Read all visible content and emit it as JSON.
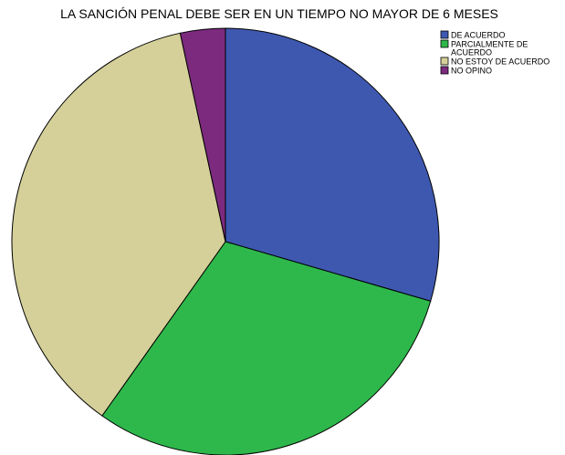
{
  "chart_data": {
    "type": "pie",
    "title": "LA SANCIÓN PENAL DEBE SER EN UN TIEMPO NO MAYOR DE 6 MESES",
    "legend_position": "top-right",
    "start_angle_deg": 0,
    "direction": "clockwise",
    "slices": [
      {
        "label": "DE ACUERDO",
        "legend_lines": [
          "DE ACUERDO"
        ],
        "value": 29.5,
        "color": "#3e58b0"
      },
      {
        "label": "PARCIALMENTE DE ACUERDO",
        "legend_lines": [
          "PARCIALMENTE DE",
          "ACUERDO"
        ],
        "value": 30.3,
        "color": "#2eb84b"
      },
      {
        "label": "NO ESTOY DE ACUERDO",
        "legend_lines": [
          "NO ESTOY DE ACUERDO"
        ],
        "value": 36.8,
        "color": "#d5d099"
      },
      {
        "label": "NO OPINO",
        "legend_lines": [
          "NO OPINO"
        ],
        "value": 3.4,
        "color": "#7c2a7e"
      }
    ]
  }
}
